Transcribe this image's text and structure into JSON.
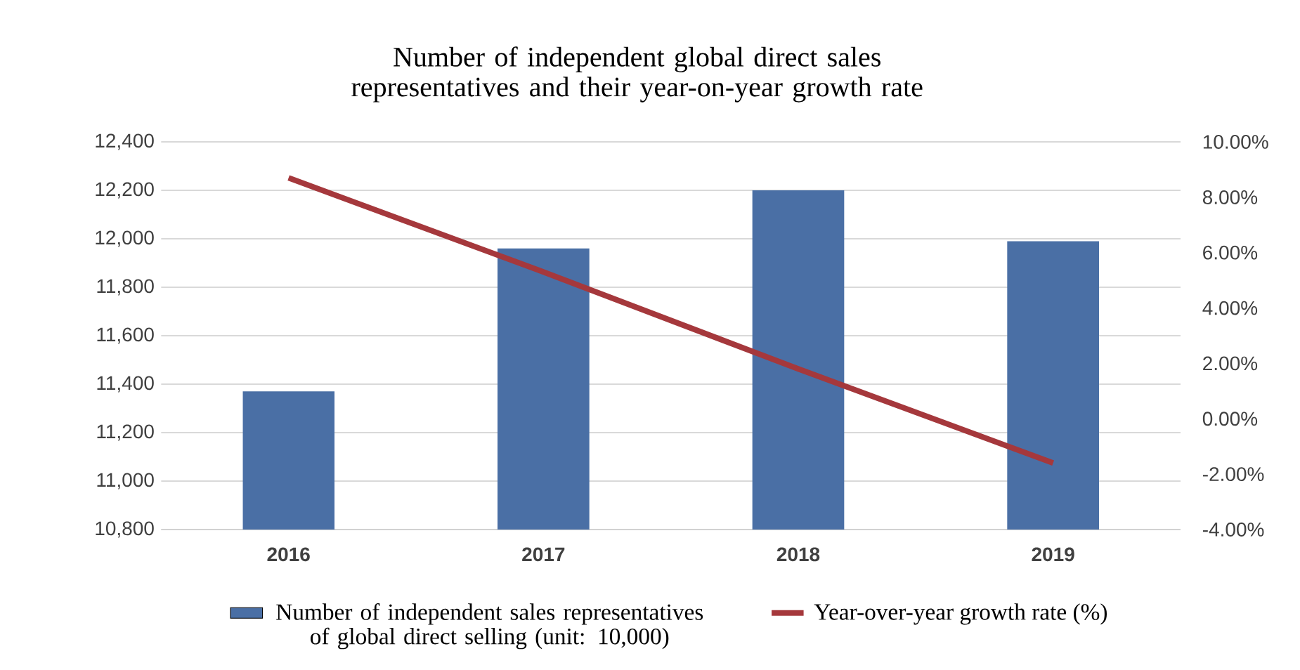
{
  "chart_data": {
    "type": "bar",
    "title": "Number of independent global direct sales representatives and their year-on-year growth rate",
    "categories": [
      "2016",
      "2017",
      "2018",
      "2019"
    ],
    "series": [
      {
        "name": "Number of independent sales representatives of global direct selling (unit: 10,000)",
        "color": "#4a6fa5",
        "values": [
          11370,
          11960,
          12200,
          11990
        ]
      },
      {
        "name": "Year-over-year growth rate (%)",
        "type": "line",
        "axis": "y2",
        "color": "#a5383c",
        "values": [
          8.7,
          5.3,
          1.8,
          -1.6
        ]
      }
    ],
    "ylim": [
      10800,
      12400
    ],
    "yticks": [
      {
        "value": 10800,
        "label": "10,800"
      },
      {
        "value": 11000,
        "label": "11,000"
      },
      {
        "value": 11200,
        "label": "11,200"
      },
      {
        "value": 11400,
        "label": "11,400"
      },
      {
        "value": 11600,
        "label": "11,600"
      },
      {
        "value": 11800,
        "label": "11,800"
      },
      {
        "value": 12000,
        "label": "12,000"
      },
      {
        "value": 12200,
        "label": "12,200"
      },
      {
        "value": 12400,
        "label": "12,400"
      }
    ],
    "y2lim": [
      -4,
      10
    ],
    "y2ticks": [
      {
        "value": -4,
        "label": "-4.00%"
      },
      {
        "value": -2,
        "label": "-2.00%"
      },
      {
        "value": 0,
        "label": "0.00%"
      },
      {
        "value": 2,
        "label": "2.00%"
      },
      {
        "value": 4,
        "label": "4.00%"
      },
      {
        "value": 6,
        "label": "6.00%"
      },
      {
        "value": 8,
        "label": "8.00%"
      },
      {
        "value": 10,
        "label": "10.00%"
      }
    ],
    "grid": "y",
    "legend": "bottom"
  }
}
